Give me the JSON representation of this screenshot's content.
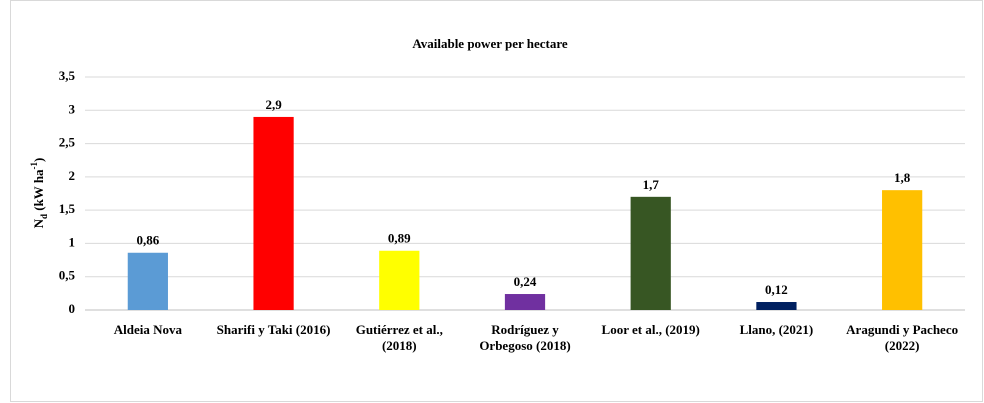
{
  "chart_data": {
    "type": "bar",
    "title": "Available power per hectare",
    "y_label": [
      "N",
      "d",
      " (kW ha",
      "-1",
      ")"
    ],
    "categories": [
      "Aldeia Nova",
      "Sharifi y Taki (2016)",
      "Gutiérrez et al., (2018)",
      "Rodríguez y Orbegoso (2018)",
      "Loor et al., (2019)",
      "Llano, (2021)",
      "Aragundi y Pacheco (2022)"
    ],
    "values": [
      0.86,
      2.9,
      0.89,
      0.24,
      1.7,
      0.12,
      1.8
    ],
    "value_labels": [
      "0,86",
      "2,9",
      "0,89",
      "0,24",
      "1,7",
      "0,12",
      "1,8"
    ],
    "colors": [
      "#5b9bd5",
      "#ff0000",
      "#ffff00",
      "#7030a0",
      "#375623",
      "#002060",
      "#ffc000"
    ],
    "ylim": [
      0,
      3.5
    ],
    "yticks": [
      0,
      {
        "value": 0.5,
        "label": "0,5"
      },
      1,
      {
        "value": 1.5,
        "label": "1,5"
      },
      2,
      {
        "value": 2.5,
        "label": "2,5"
      },
      3,
      {
        "value": 3.5,
        "label": "3,5"
      }
    ],
    "grid": true
  }
}
